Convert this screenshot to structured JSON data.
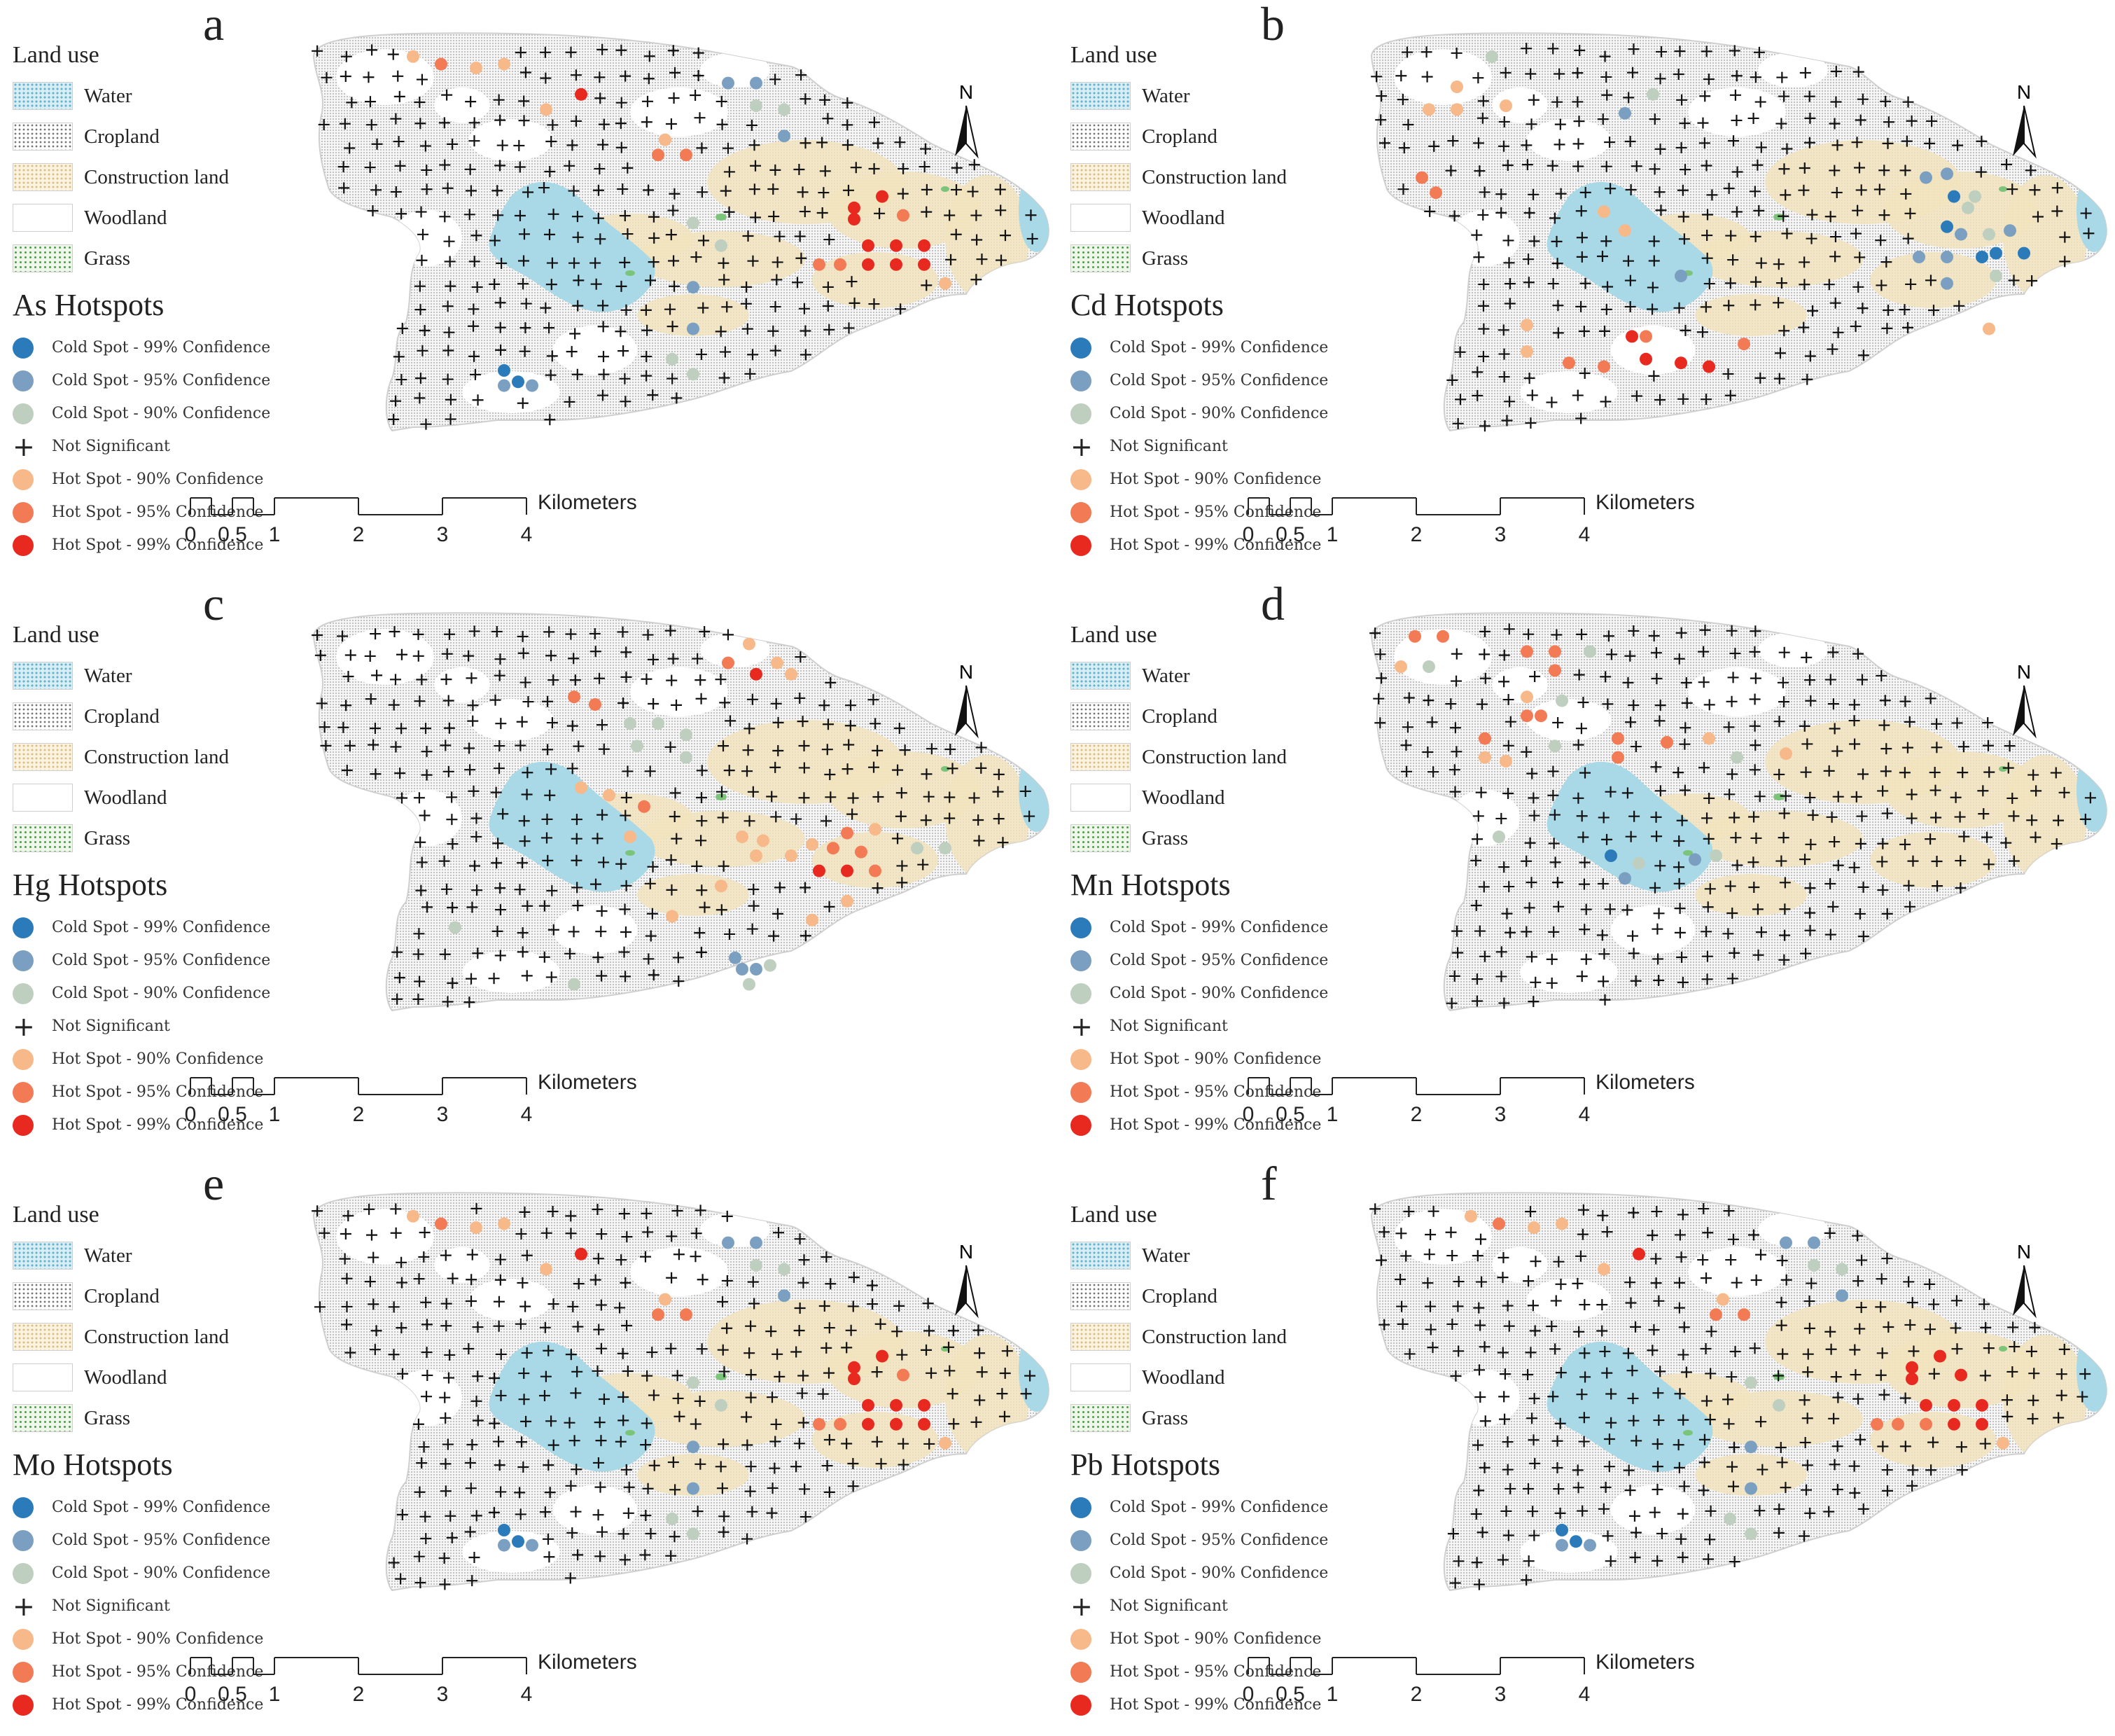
{
  "figure": {
    "land_use_title": "Land use",
    "land_use": [
      "Water",
      "Cropland",
      "Construction land",
      "Woodland",
      "Grass"
    ],
    "legend_classes": [
      {
        "label": "Cold Spot - 99% Confidence",
        "color": "#2b7bba"
      },
      {
        "label": "Cold Spot - 95% Confidence",
        "color": "#7b9fc0"
      },
      {
        "label": "Cold Spot - 90% Confidence",
        "color": "#bfcfbf"
      },
      {
        "label": "Not Significant",
        "color": "#000000"
      },
      {
        "label": "Hot Spot - 90% Confidence",
        "color": "#f7b98a"
      },
      {
        "label": "Hot Spot - 95% Confidence",
        "color": "#f27a55"
      },
      {
        "label": "Hot Spot - 99% Confidence",
        "color": "#e8291f"
      }
    ],
    "scale_ticks": [
      "0",
      "0.5",
      "1",
      "2",
      "3",
      "4"
    ],
    "scale_unit": "Kilometers",
    "north_label": "N",
    "land_colors": {
      "water": "#a9d8e6",
      "construction": "#f1e3bd",
      "cropland": "#ededed",
      "grass": "#7cc47a"
    }
  },
  "panels": [
    {
      "letter": "a",
      "hotspot_title": "As Hotspots",
      "hotspots": [
        [
          "h90",
          0.12,
          0.02
        ],
        [
          "h95",
          0.16,
          0.04
        ],
        [
          "h90",
          0.21,
          0.05
        ],
        [
          "h90",
          0.25,
          0.04
        ],
        [
          "h99",
          0.36,
          0.12
        ],
        [
          "h90",
          0.31,
          0.16
        ],
        [
          "h90",
          0.48,
          0.24
        ],
        [
          "h95",
          0.47,
          0.28
        ],
        [
          "h95",
          0.51,
          0.28
        ],
        [
          "c95",
          0.57,
          0.09
        ],
        [
          "c95",
          0.61,
          0.09
        ],
        [
          "c90",
          0.61,
          0.15
        ],
        [
          "c90",
          0.65,
          0.16
        ],
        [
          "c95",
          0.65,
          0.23
        ],
        [
          "h99",
          0.75,
          0.42
        ],
        [
          "h99",
          0.79,
          0.39
        ],
        [
          "h99",
          0.75,
          0.45
        ],
        [
          "h95",
          0.82,
          0.44
        ],
        [
          "h99",
          0.77,
          0.52
        ],
        [
          "h99",
          0.81,
          0.52
        ],
        [
          "h99",
          0.85,
          0.52
        ],
        [
          "h99",
          0.77,
          0.57
        ],
        [
          "h99",
          0.81,
          0.57
        ],
        [
          "h99",
          0.85,
          0.57
        ],
        [
          "h95",
          0.7,
          0.57
        ],
        [
          "h95",
          0.73,
          0.57
        ],
        [
          "h90",
          0.88,
          0.62
        ],
        [
          "c90",
          0.52,
          0.46
        ],
        [
          "c90",
          0.56,
          0.52
        ],
        [
          "c95",
          0.52,
          0.63
        ],
        [
          "c95",
          0.52,
          0.74
        ],
        [
          "c90",
          0.49,
          0.82
        ],
        [
          "c90",
          0.52,
          0.86
        ],
        [
          "c99",
          0.25,
          0.85
        ],
        [
          "c99",
          0.27,
          0.88
        ],
        [
          "c95",
          0.25,
          0.89
        ],
        [
          "c95",
          0.29,
          0.89
        ]
      ]
    },
    {
      "letter": "b",
      "hotspot_title": "Cd Hotspots",
      "hotspots": [
        [
          "c90",
          0.15,
          0.02
        ],
        [
          "h90",
          0.1,
          0.1
        ],
        [
          "h90",
          0.06,
          0.16
        ],
        [
          "h90",
          0.1,
          0.16
        ],
        [
          "h90",
          0.17,
          0.15
        ],
        [
          "h95",
          0.05,
          0.34
        ],
        [
          "h95",
          0.07,
          0.38
        ],
        [
          "c95",
          0.34,
          0.17
        ],
        [
          "c90",
          0.38,
          0.12
        ],
        [
          "h90",
          0.31,
          0.43
        ],
        [
          "h90",
          0.34,
          0.48
        ],
        [
          "c95",
          0.42,
          0.6
        ],
        [
          "c95",
          0.77,
          0.34
        ],
        [
          "c95",
          0.8,
          0.33
        ],
        [
          "c99",
          0.81,
          0.39
        ],
        [
          "c90",
          0.84,
          0.39
        ],
        [
          "c90",
          0.83,
          0.42
        ],
        [
          "c99",
          0.8,
          0.47
        ],
        [
          "c95",
          0.82,
          0.49
        ],
        [
          "c90",
          0.86,
          0.49
        ],
        [
          "c95",
          0.89,
          0.48
        ],
        [
          "c95",
          0.76,
          0.55
        ],
        [
          "c95",
          0.8,
          0.55
        ],
        [
          "c99",
          0.85,
          0.55
        ],
        [
          "c99",
          0.87,
          0.54
        ],
        [
          "c99",
          0.91,
          0.54
        ],
        [
          "c90",
          0.87,
          0.6
        ],
        [
          "c95",
          0.8,
          0.62
        ],
        [
          "h90",
          0.86,
          0.74
        ],
        [
          "h90",
          0.2,
          0.73
        ],
        [
          "h90",
          0.2,
          0.8
        ],
        [
          "h95",
          0.26,
          0.83
        ],
        [
          "h95",
          0.31,
          0.84
        ],
        [
          "h99",
          0.35,
          0.76
        ],
        [
          "h95",
          0.37,
          0.76
        ],
        [
          "h99",
          0.37,
          0.82
        ],
        [
          "h99",
          0.42,
          0.83
        ],
        [
          "h99",
          0.46,
          0.84
        ],
        [
          "h95",
          0.51,
          0.78
        ]
      ]
    },
    {
      "letter": "c",
      "hotspot_title": "Hg Hotspots",
      "hotspots": [
        [
          "h90",
          0.6,
          0.04
        ],
        [
          "h95",
          0.57,
          0.09
        ],
        [
          "h99",
          0.61,
          0.12
        ],
        [
          "h90",
          0.64,
          0.09
        ],
        [
          "h90",
          0.66,
          0.12
        ],
        [
          "h95",
          0.35,
          0.18
        ],
        [
          "h95",
          0.38,
          0.2
        ],
        [
          "c90",
          0.43,
          0.25
        ],
        [
          "c90",
          0.47,
          0.25
        ],
        [
          "c90",
          0.51,
          0.28
        ],
        [
          "c90",
          0.44,
          0.31
        ],
        [
          "c90",
          0.51,
          0.34
        ],
        [
          "h90",
          0.36,
          0.42
        ],
        [
          "h90",
          0.4,
          0.44
        ],
        [
          "h95",
          0.45,
          0.47
        ],
        [
          "h90",
          0.43,
          0.55
        ],
        [
          "h90",
          0.59,
          0.55
        ],
        [
          "h90",
          0.62,
          0.56
        ],
        [
          "h90",
          0.61,
          0.6
        ],
        [
          "h90",
          0.66,
          0.6
        ],
        [
          "h90",
          0.69,
          0.57
        ],
        [
          "h95",
          0.72,
          0.58
        ],
        [
          "h95",
          0.74,
          0.54
        ],
        [
          "h95",
          0.76,
          0.59
        ],
        [
          "h90",
          0.78,
          0.53
        ],
        [
          "h99",
          0.7,
          0.64
        ],
        [
          "h99",
          0.74,
          0.64
        ],
        [
          "h95",
          0.78,
          0.64
        ],
        [
          "h90",
          0.56,
          0.68
        ],
        [
          "h90",
          0.49,
          0.76
        ],
        [
          "c90",
          0.84,
          0.58
        ],
        [
          "c90",
          0.88,
          0.58
        ],
        [
          "h90",
          0.74,
          0.72
        ],
        [
          "h90",
          0.69,
          0.77
        ],
        [
          "c90",
          0.18,
          0.79
        ],
        [
          "c95",
          0.58,
          0.87
        ],
        [
          "c95",
          0.59,
          0.9
        ],
        [
          "c95",
          0.61,
          0.9
        ],
        [
          "c90",
          0.63,
          0.89
        ],
        [
          "c90",
          0.6,
          0.94
        ],
        [
          "c90",
          0.35,
          0.94
        ]
      ]
    },
    {
      "letter": "d",
      "hotspot_title": "Mn Hotspots",
      "hotspots": [
        [
          "h95",
          0.04,
          0.02
        ],
        [
          "h95",
          0.08,
          0.02
        ],
        [
          "h90",
          0.02,
          0.1
        ],
        [
          "c90",
          0.06,
          0.1
        ],
        [
          "h95",
          0.2,
          0.06
        ],
        [
          "c90",
          0.29,
          0.06
        ],
        [
          "h95",
          0.24,
          0.06
        ],
        [
          "h95",
          0.24,
          0.11
        ],
        [
          "h90",
          0.2,
          0.18
        ],
        [
          "h95",
          0.2,
          0.23
        ],
        [
          "h95",
          0.22,
          0.23
        ],
        [
          "c90",
          0.25,
          0.19
        ],
        [
          "h95",
          0.14,
          0.29
        ],
        [
          "h90",
          0.14,
          0.34
        ],
        [
          "h90",
          0.17,
          0.35
        ],
        [
          "h95",
          0.33,
          0.29
        ],
        [
          "c90",
          0.24,
          0.31
        ],
        [
          "h95",
          0.4,
          0.3
        ],
        [
          "h95",
          0.33,
          0.34
        ],
        [
          "h90",
          0.46,
          0.29
        ],
        [
          "c90",
          0.5,
          0.34
        ],
        [
          "h90",
          0.57,
          0.33
        ],
        [
          "c90",
          0.16,
          0.55
        ],
        [
          "c99",
          0.32,
          0.6
        ],
        [
          "c95",
          0.34,
          0.66
        ],
        [
          "c90",
          0.36,
          0.62
        ],
        [
          "c95",
          0.44,
          0.61
        ],
        [
          "c90",
          0.47,
          0.6
        ]
      ]
    },
    {
      "letter": "e",
      "hotspot_title": "Mo Hotspots",
      "hotspots": [
        [
          "h90",
          0.12,
          0.02
        ],
        [
          "h95",
          0.16,
          0.04
        ],
        [
          "h90",
          0.21,
          0.05
        ],
        [
          "h90",
          0.25,
          0.04
        ],
        [
          "h99",
          0.36,
          0.12
        ],
        [
          "h90",
          0.31,
          0.16
        ],
        [
          "h90",
          0.48,
          0.24
        ],
        [
          "h95",
          0.47,
          0.28
        ],
        [
          "h95",
          0.51,
          0.28
        ],
        [
          "c95",
          0.57,
          0.09
        ],
        [
          "c95",
          0.61,
          0.09
        ],
        [
          "c90",
          0.61,
          0.15
        ],
        [
          "c90",
          0.65,
          0.16
        ],
        [
          "c95",
          0.65,
          0.23
        ],
        [
          "h99",
          0.75,
          0.42
        ],
        [
          "h99",
          0.79,
          0.39
        ],
        [
          "h99",
          0.75,
          0.45
        ],
        [
          "h95",
          0.82,
          0.44
        ],
        [
          "h99",
          0.77,
          0.52
        ],
        [
          "h99",
          0.81,
          0.52
        ],
        [
          "h99",
          0.85,
          0.52
        ],
        [
          "h99",
          0.77,
          0.57
        ],
        [
          "h99",
          0.81,
          0.57
        ],
        [
          "h99",
          0.85,
          0.57
        ],
        [
          "h95",
          0.7,
          0.57
        ],
        [
          "h95",
          0.73,
          0.57
        ],
        [
          "h90",
          0.88,
          0.62
        ],
        [
          "c90",
          0.52,
          0.46
        ],
        [
          "c90",
          0.56,
          0.52
        ],
        [
          "c95",
          0.52,
          0.63
        ],
        [
          "c95",
          0.52,
          0.74
        ],
        [
          "c90",
          0.49,
          0.82
        ],
        [
          "c90",
          0.52,
          0.86
        ],
        [
          "c99",
          0.25,
          0.85
        ],
        [
          "c99",
          0.27,
          0.88
        ],
        [
          "c95",
          0.25,
          0.89
        ],
        [
          "c95",
          0.29,
          0.89
        ]
      ]
    },
    {
      "letter": "f",
      "hotspot_title": "Pb Hotspots",
      "hotspots": [
        [
          "h90",
          0.12,
          0.02
        ],
        [
          "h95",
          0.16,
          0.04
        ],
        [
          "h90",
          0.21,
          0.05
        ],
        [
          "h90",
          0.25,
          0.04
        ],
        [
          "h99",
          0.36,
          0.12
        ],
        [
          "h90",
          0.31,
          0.16
        ],
        [
          "h90",
          0.48,
          0.24
        ],
        [
          "h95",
          0.47,
          0.28
        ],
        [
          "h95",
          0.51,
          0.28
        ],
        [
          "c95",
          0.57,
          0.09
        ],
        [
          "c95",
          0.61,
          0.09
        ],
        [
          "c90",
          0.61,
          0.15
        ],
        [
          "c90",
          0.65,
          0.16
        ],
        [
          "c95",
          0.65,
          0.23
        ],
        [
          "h99",
          0.75,
          0.42
        ],
        [
          "h99",
          0.79,
          0.39
        ],
        [
          "h99",
          0.75,
          0.45
        ],
        [
          "h99",
          0.82,
          0.44
        ],
        [
          "h99",
          0.77,
          0.52
        ],
        [
          "h99",
          0.81,
          0.52
        ],
        [
          "h99",
          0.85,
          0.52
        ],
        [
          "h95",
          0.77,
          0.57
        ],
        [
          "h99",
          0.81,
          0.57
        ],
        [
          "h99",
          0.85,
          0.57
        ],
        [
          "h95",
          0.7,
          0.57
        ],
        [
          "h95",
          0.73,
          0.57
        ],
        [
          "h90",
          0.88,
          0.62
        ],
        [
          "c90",
          0.52,
          0.46
        ],
        [
          "c90",
          0.56,
          0.52
        ],
        [
          "c95",
          0.52,
          0.63
        ],
        [
          "c95",
          0.52,
          0.74
        ],
        [
          "c90",
          0.49,
          0.82
        ],
        [
          "c90",
          0.52,
          0.86
        ],
        [
          "c99",
          0.25,
          0.85
        ],
        [
          "c99",
          0.27,
          0.88
        ],
        [
          "c95",
          0.25,
          0.89
        ],
        [
          "c95",
          0.29,
          0.89
        ]
      ]
    }
  ]
}
